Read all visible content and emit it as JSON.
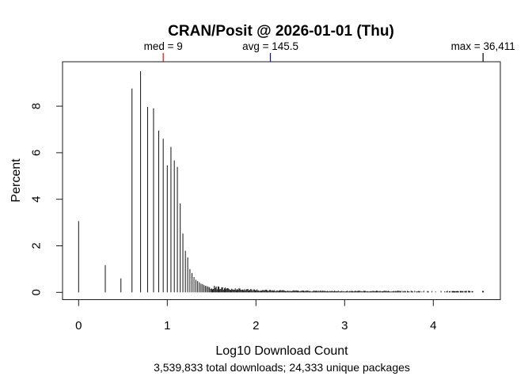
{
  "figure": {
    "background": "#ffffff",
    "foreground": "#000000"
  },
  "chart_data": {
    "type": "bar",
    "variant": "spike-histogram",
    "title": "CRAN/Posit @ 2026-01-01 (Thu)",
    "xlabel": "Log10 Download Count",
    "x_sublabel": "3,539,833 total downloads; 24,333 unique packages",
    "ylabel": "Percent",
    "x_ticks": [
      0,
      1,
      2,
      3,
      4
    ],
    "y_ticks": [
      0,
      2,
      4,
      6,
      8
    ],
    "xlim_log10": [
      -0.18,
      4.76
    ],
    "ylim_percent": [
      0,
      10.2
    ],
    "grid": false,
    "legend": "none",
    "annotations": [
      {
        "id": "median",
        "label": "med = 9",
        "value": 9,
        "color": "#ff0000"
      },
      {
        "id": "mean",
        "label": "avg = 145.5",
        "value": 145.5,
        "color": "#0000ff"
      },
      {
        "id": "max",
        "label": "max = 36,411",
        "value": 36411,
        "color": "#000000"
      }
    ],
    "spikes": [
      {
        "count": 1,
        "percent": 3.06
      },
      {
        "count": 2,
        "percent": 1.17
      },
      {
        "count": 3,
        "percent": 0.6
      },
      {
        "count": 4,
        "percent": 8.76
      },
      {
        "count": 5,
        "percent": 9.5
      },
      {
        "count": 6,
        "percent": 7.97
      },
      {
        "count": 7,
        "percent": 7.91
      },
      {
        "count": 8,
        "percent": 6.95
      },
      {
        "count": 9,
        "percent": 6.6
      },
      {
        "count": 10,
        "percent": 5.46
      },
      {
        "count": 11,
        "percent": 6.25
      },
      {
        "count": 12,
        "percent": 5.67
      },
      {
        "count": 13,
        "percent": 5.39
      },
      {
        "count": 14,
        "percent": 3.82
      },
      {
        "count": 15,
        "percent": 2.53
      },
      {
        "count": 16,
        "percent": 1.79
      },
      {
        "count": 17,
        "percent": 1.5
      },
      {
        "count": 18,
        "percent": 1.0
      },
      {
        "count": 19,
        "percent": 0.83
      },
      {
        "count": 20,
        "percent": 0.66
      },
      {
        "count": 21,
        "percent": 0.54
      },
      {
        "count": 22,
        "percent": 0.49
      },
      {
        "count": 23,
        "percent": 0.43
      },
      {
        "count": 24,
        "percent": 0.37
      },
      {
        "count": 25,
        "percent": 0.35
      },
      {
        "count": 26,
        "percent": 0.31
      },
      {
        "count": 27,
        "percent": 0.28
      },
      {
        "count": 28,
        "percent": 0.26
      },
      {
        "count": 29,
        "percent": 0.24
      },
      {
        "count": 30,
        "percent": 0.22
      }
    ],
    "tail": {
      "description": "counts > 30 merge into a dense rug of sub-0.25% spikes along y=0",
      "band_log10_start": 1.49,
      "band_log10_end": 4.41,
      "band_solid_until_log10": 3.6,
      "band_percent_at_start": 0.22,
      "band_percent_floor": 0.05,
      "sparse_log10": [
        4.22,
        4.24,
        4.26,
        4.28,
        4.31,
        4.33,
        4.36,
        4.41,
        4.44
      ],
      "max_point_log10": 4.561,
      "max_point_percent": 0.06
    }
  }
}
